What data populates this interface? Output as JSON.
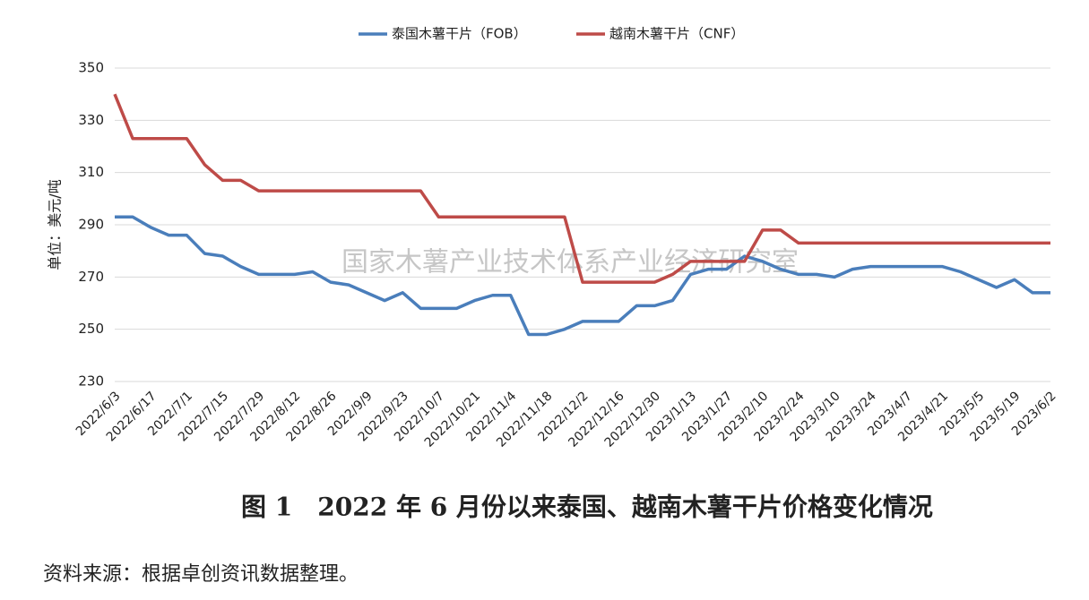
{
  "chart_data": {
    "type": "line",
    "y_label": "单位：美元/吨",
    "watermark": "国家木薯产业技术体系产业经济研究室",
    "categories": [
      "2022/6/3",
      null,
      "2022/6/17",
      null,
      "2022/7/1",
      null,
      "2022/7/15",
      null,
      "2022/7/29",
      null,
      "2022/8/12",
      null,
      "2022/8/26",
      null,
      "2022/9/9",
      null,
      "2022/9/23",
      null,
      "2022/10/7",
      null,
      "2022/10/21",
      null,
      "2022/11/4",
      null,
      "2022/11/18",
      null,
      "2022/12/2",
      null,
      "2022/12/16",
      null,
      "2022/12/30",
      null,
      "2023/1/13",
      null,
      "2023/1/27",
      null,
      "2023/2/10",
      null,
      "2023/2/24",
      null,
      "2023/3/10",
      null,
      "2023/3/24",
      null,
      "2023/4/7",
      null,
      "2023/4/21",
      null,
      "2023/5/5",
      null,
      "2023/5/19",
      null,
      "2023/6/2"
    ],
    "series": [
      {
        "name": "泰国木薯干片（FOB）",
        "color": "#4a7ebb",
        "values": [
          293,
          293,
          289,
          286,
          286,
          279,
          278,
          274,
          271,
          271,
          271,
          272,
          268,
          267,
          264,
          261,
          264,
          258,
          258,
          258,
          261,
          263,
          263,
          248,
          248,
          250,
          253,
          253,
          253,
          259,
          259,
          261,
          271,
          273,
          273,
          278,
          276,
          273,
          271,
          271,
          270,
          273,
          274,
          274,
          274,
          274,
          274,
          272,
          269,
          266,
          269,
          264,
          264
        ]
      },
      {
        "name": "越南木薯干片（CNF）",
        "color": "#be4b48",
        "values": [
          340,
          323,
          323,
          323,
          323,
          313,
          307,
          307,
          303,
          303,
          303,
          303,
          303,
          303,
          303,
          303,
          303,
          303,
          293,
          293,
          293,
          293,
          293,
          293,
          293,
          293,
          268,
          268,
          268,
          268,
          268,
          271,
          276,
          276,
          276,
          276,
          288,
          288,
          283,
          283,
          283,
          283,
          283,
          283,
          283,
          283,
          283,
          283,
          283,
          283,
          283,
          283,
          283
        ]
      }
    ],
    "ylim": [
      230,
      350
    ],
    "yticks": [
      230,
      250,
      270,
      290,
      310,
      330,
      350
    ],
    "grid": true
  },
  "caption": "图 1　2022 年 6 月份以来泰国、越南木薯干片价格变化情况",
  "source": "资料来源：根据卓创资讯数据整理。"
}
